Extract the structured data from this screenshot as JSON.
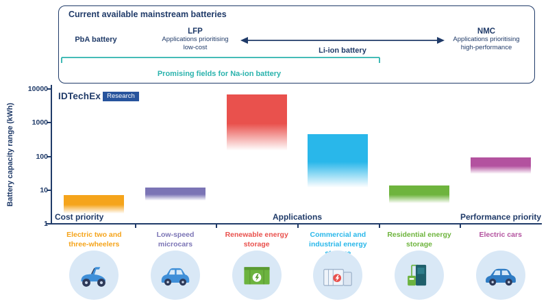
{
  "colors": {
    "navy": "#1F3A68",
    "teal": "#2BB3AD",
    "icon_background": "#D9E8F6",
    "logo_badge_blue": "#27549D"
  },
  "header": {
    "box_title": "Current available mainstream batteries",
    "pba_label": "PbA battery",
    "lfp": {
      "title": "LFP",
      "sub1": "Applications prioritising",
      "sub2": "low-cost"
    },
    "liion_label": "Li-ion battery",
    "nmc": {
      "title": "NMC",
      "sub1": "Applications prioritising",
      "sub2": "high-performance"
    },
    "naion_label": "Promising fields for Na-ion battery"
  },
  "logo": {
    "brand": "IDTechEx",
    "badge": "Research"
  },
  "axes": {
    "y_label": "Battery capacity range (kWh)",
    "x_left": "Cost priority",
    "x_center": "Applications",
    "x_right": "Performance priority"
  },
  "chart_data": {
    "type": "bar",
    "subtype": "floating min-max range bars, fading toward lower bound",
    "title": "Current available mainstream batteries",
    "ylabel": "Battery capacity range (kWh)",
    "y_scale": "log10",
    "ylim": [
      1,
      10000
    ],
    "y_ticks": [
      "1",
      "10",
      "100",
      "1000",
      "10000"
    ],
    "grid": false,
    "legend": false,
    "categories": [
      "Electric two and three-wheelers",
      "Low-speed microcars",
      "Renewable energy storage",
      "Commercial and industrial energy storage",
      "Residential energy storage",
      "Electric cars"
    ],
    "columns": [
      {
        "label": "Electric two and three-wheelers",
        "label_lines": [
          "Electric two and",
          "three-wheelers"
        ],
        "color": "#F5A41B",
        "range_kwh": [
          2,
          7
        ],
        "icon": "electric-two-three-wheeler-icon"
      },
      {
        "label": "Low-speed microcars",
        "label_lines": [
          "Low-speed",
          "microcars"
        ],
        "color": "#7B74B5",
        "range_kwh": [
          5,
          12
        ],
        "icon": "microcar-icon"
      },
      {
        "label": "Renewable energy storage",
        "label_lines": [
          "Renewable energy",
          "storage"
        ],
        "color": "#E9514D",
        "range_kwh": [
          150,
          7000
        ],
        "icon": "renewable-storage-icon"
      },
      {
        "label": "Commercial and industrial energy storage",
        "label_lines": [
          "Commercial and",
          "industrial energy storage"
        ],
        "color": "#29B7EA",
        "range_kwh": [
          12,
          450
        ],
        "icon": "commercial-storage-icon"
      },
      {
        "label": "Residential energy storage",
        "label_lines": [
          "Residential energy",
          "storage"
        ],
        "color": "#6EB43D",
        "range_kwh": [
          4,
          14
        ],
        "icon": "residential-storage-icon"
      },
      {
        "label": "Electric cars",
        "label_lines": [
          "Electric cars"
        ],
        "color": "#B3529F",
        "range_kwh": [
          30,
          95
        ],
        "icon": "electric-car-icon"
      }
    ],
    "annotations": {
      "pba_span_columns": [
        0,
        1
      ],
      "liion_span": "LFP to NMC (double-headed arrow)",
      "naion_span": "PbA through Li-ion low-cost fields (teal bracket)"
    }
  }
}
